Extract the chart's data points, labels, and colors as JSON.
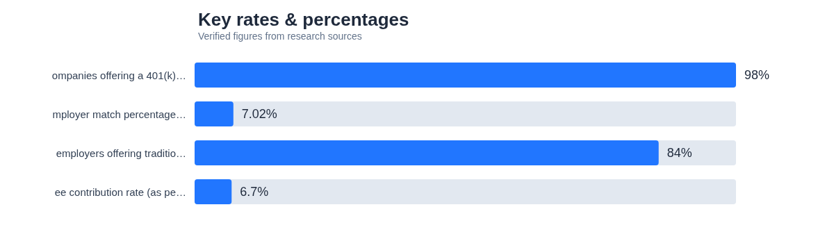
{
  "chart_data": {
    "type": "bar",
    "orientation": "horizontal",
    "title": "Key rates & percentages",
    "subtitle": "Verified figures from research sources",
    "categories": [
      "ompanies offering a 401(k)…",
      "mployer match percentage…",
      "employers offering traditio…",
      "ee contribution rate (as pe…"
    ],
    "values": [
      98,
      7.02,
      84,
      6.7
    ],
    "value_labels": [
      "98%",
      "7.02%",
      "84%",
      "6.7%"
    ],
    "color": "#2176ff"
  }
}
